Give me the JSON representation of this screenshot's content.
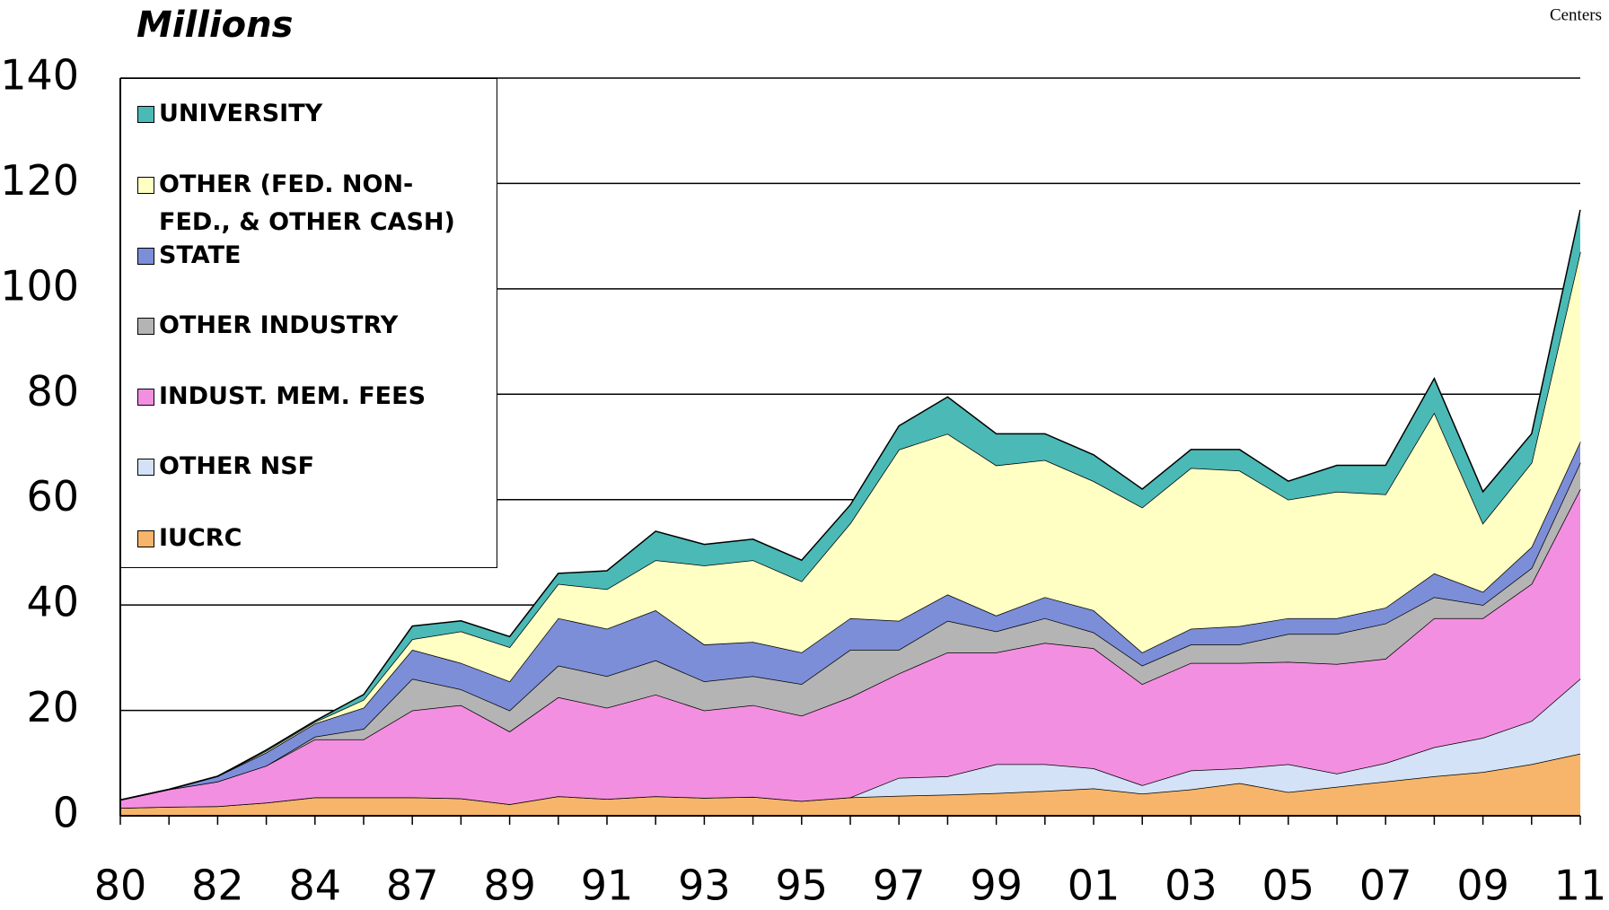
{
  "chart_data": {
    "type": "stacked-area",
    "title": "Millions",
    "corner_note": "Centers",
    "categories": [
      "80",
      null,
      "82",
      null,
      "84",
      null,
      "87",
      null,
      "89",
      null,
      "91",
      null,
      "93",
      null,
      "95",
      null,
      "97",
      null,
      "99",
      null,
      "01",
      null,
      "03",
      null,
      "05",
      null,
      "07",
      null,
      "09",
      null,
      "11"
    ],
    "ylim": [
      0,
      140
    ],
    "yticks": [
      0,
      20,
      40,
      60,
      80,
      100,
      120,
      140
    ],
    "grid": true,
    "legend": "top-left",
    "series": [
      {
        "name": "IUCRC",
        "color": "#f6b56a",
        "values": [
          1.5,
          1.7,
          1.8,
          2.5,
          3.5,
          3.5,
          3.5,
          3.3,
          2.2,
          3.7,
          3.2,
          3.7,
          3.4,
          3.6,
          2.8,
          3.5,
          3.8,
          4,
          4.3,
          4.7,
          5.2,
          4.2,
          5,
          6.2,
          4.5,
          5.5,
          6.5,
          7.5,
          8.3,
          9.8,
          11.8
        ]
      },
      {
        "name": "OTHER NSF",
        "color": "#d3e2f6",
        "values": [
          0,
          0,
          0,
          0,
          0,
          0,
          0,
          0,
          0,
          0,
          0,
          0,
          0,
          0,
          0,
          0,
          3.4,
          3.5,
          5.5,
          5.1,
          3.8,
          1.6,
          3.6,
          2.8,
          5.3,
          2.5,
          3.5,
          5.5,
          6.5,
          8.2,
          14.2
        ]
      },
      {
        "name": "INDUST. MEM. FEES",
        "color": "#f38fe0",
        "values": [
          1.5,
          3.3,
          4.7,
          7,
          11,
          11,
          16.5,
          17.7,
          13.8,
          18.8,
          17.3,
          19.3,
          16.6,
          17.4,
          16.2,
          19,
          19.8,
          23.5,
          21.2,
          23,
          22.8,
          19.2,
          20.4,
          20,
          19.4,
          20.8,
          19.8,
          24.5,
          22.7,
          26,
          36
        ]
      },
      {
        "name": "OTHER INDUSTRY",
        "color": "#b4b4b4",
        "values": [
          0,
          0,
          0,
          0,
          0.5,
          2,
          6,
          3,
          4,
          6,
          6,
          6.5,
          5.5,
          5.5,
          6,
          9,
          4.5,
          6,
          4,
          4.7,
          3,
          3.5,
          3.5,
          3.5,
          5.3,
          5.7,
          6.7,
          4,
          2.5,
          3,
          5
        ]
      },
      {
        "name": "STATE",
        "color": "#7c8ed8",
        "values": [
          0,
          0,
          1,
          2.5,
          2.5,
          4,
          5.5,
          5,
          5.5,
          9,
          9,
          9.5,
          7,
          6.5,
          6,
          6,
          5.5,
          5,
          3,
          4,
          4.2,
          2.5,
          3,
          3.5,
          3,
          3,
          3,
          4.5,
          2.5,
          4,
          4
        ]
      },
      {
        "name": "OTHER (FED. NON-FED., & OTHER CASH)",
        "color": "#ffffc4",
        "values": [
          0,
          0,
          0,
          0.3,
          0.3,
          1.5,
          2,
          6,
          6.5,
          6.5,
          7.5,
          9.5,
          15,
          15.5,
          13.5,
          18,
          32.5,
          30.5,
          28.5,
          26,
          24.5,
          27.5,
          30.5,
          29.5,
          22.5,
          24,
          21.5,
          30.5,
          13,
          16,
          36
        ]
      },
      {
        "name": "UNIVERSITY",
        "color": "#4bb9b6",
        "values": [
          0,
          0,
          0,
          0.2,
          0.2,
          1,
          2.5,
          2,
          2,
          2,
          3.5,
          5.5,
          4,
          4,
          4,
          3.5,
          4.5,
          7,
          6,
          5,
          5,
          3.5,
          3.5,
          4,
          3.5,
          5,
          5.5,
          6.5,
          6,
          5.5,
          8
        ]
      }
    ]
  }
}
